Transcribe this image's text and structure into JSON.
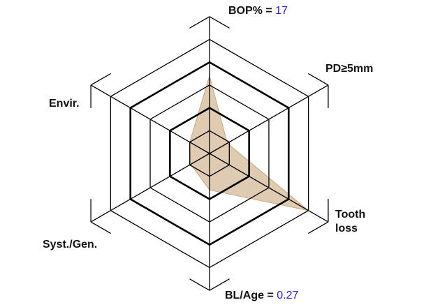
{
  "axes": [
    {
      "label": "BOP%",
      "equals": "=",
      "value": "17",
      "score": 3.4
    },
    {
      "label": "PD≥5mm",
      "score": 0.9
    },
    {
      "label": "Tooth loss",
      "line1": "Tooth",
      "line2": "loss",
      "score": 5.0
    },
    {
      "label": "BL/Age",
      "equals": "=",
      "value": "0.27",
      "score": 1.6
    },
    {
      "label": "Syst./Gen.",
      "score": 0.95
    },
    {
      "label": "Envir.",
      "score": 1.0
    }
  ],
  "scale": {
    "rings": 5,
    "bold_rings": [
      2,
      4
    ]
  },
  "colors": {
    "fill": "#c9a77f",
    "value_text": "#2222dd",
    "lines": "#000000"
  }
}
